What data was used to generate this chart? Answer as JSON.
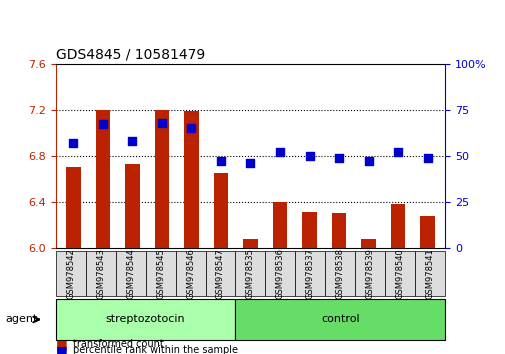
{
  "title": "GDS4845 / 10581479",
  "samples": [
    "GSM978542",
    "GSM978543",
    "GSM978544",
    "GSM978545",
    "GSM978546",
    "GSM978547",
    "GSM978535",
    "GSM978536",
    "GSM978537",
    "GSM978538",
    "GSM978539",
    "GSM978540",
    "GSM978541"
  ],
  "transformed_count": [
    6.7,
    7.2,
    6.73,
    7.2,
    7.19,
    6.65,
    6.08,
    6.4,
    6.31,
    6.3,
    6.08,
    6.38,
    6.28
  ],
  "percentile_rank": [
    57,
    67,
    58,
    68,
    65,
    47,
    46,
    52,
    50,
    49,
    47,
    52,
    49
  ],
  "group_labels": [
    "streptozotocin",
    "control"
  ],
  "group_spans": [
    6,
    7
  ],
  "left_ylim": [
    6.0,
    7.6
  ],
  "right_ylim": [
    0,
    100
  ],
  "left_yticks": [
    6.0,
    6.4,
    6.8,
    7.2,
    7.6
  ],
  "right_yticks": [
    0,
    25,
    50,
    75,
    100
  ],
  "right_yticklabels": [
    "0",
    "25",
    "50",
    "75",
    "100%"
  ],
  "bar_color": "#bb2200",
  "dot_color": "#0000cc",
  "grid_color": "#000000",
  "strep_bg": "#aaffaa",
  "ctrl_bg": "#66dd66",
  "sample_bg": "#dddddd",
  "agent_label": "agent",
  "legend_bar_label": "transformed count",
  "legend_dot_label": "percentile rank within the sample",
  "bar_width": 0.5,
  "dot_size": 30
}
